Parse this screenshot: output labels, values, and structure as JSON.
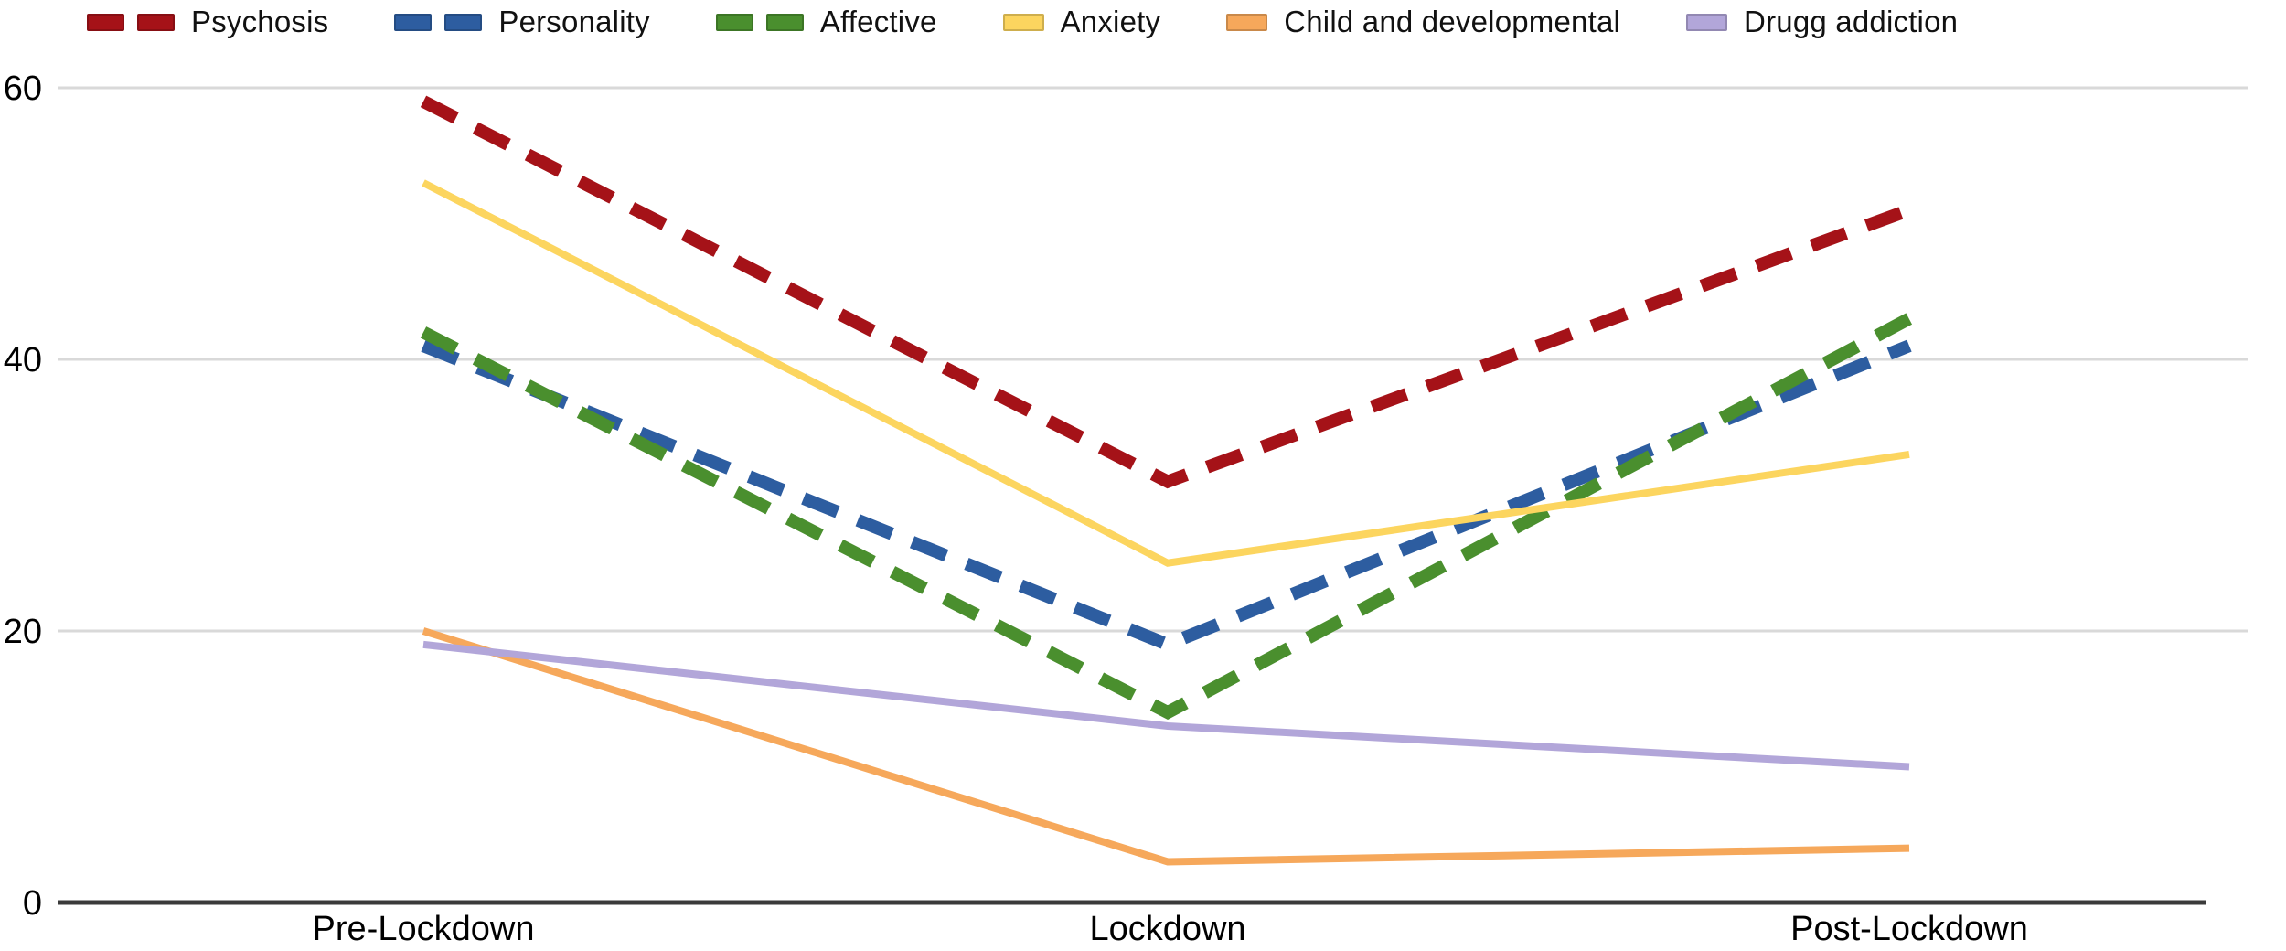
{
  "chart_data": {
    "type": "line",
    "categories": [
      "Pre-Lockdown",
      "Lockdown",
      "Post-Lockdown"
    ],
    "series": [
      {
        "name": "Psychosis",
        "values": [
          59,
          31,
          51
        ],
        "color": "#a51218",
        "style": "dashed"
      },
      {
        "name": "Personality",
        "values": [
          41,
          19,
          41
        ],
        "color": "#2d5da0",
        "style": "dashed"
      },
      {
        "name": "Affective",
        "values": [
          42,
          14,
          43
        ],
        "color": "#4a8f2e",
        "style": "dashed"
      },
      {
        "name": "Anxiety",
        "values": [
          53,
          25,
          33
        ],
        "color": "#fcd55f",
        "style": "solid"
      },
      {
        "name": "Child and developmental",
        "values": [
          20,
          3,
          4
        ],
        "color": "#f6a85b",
        "style": "solid"
      },
      {
        "name": "Drugg addiction",
        "values": [
          19,
          13,
          10
        ],
        "color": "#b2a6d9",
        "style": "solid"
      }
    ],
    "title": "",
    "xlabel": "",
    "ylabel": "",
    "ylim": [
      0,
      60
    ],
    "yticks": [
      0,
      20,
      40,
      60
    ],
    "grid": true,
    "legend_position": "top"
  },
  "colors": {
    "gridline": "#d9d9d9",
    "axis": "#3a3a3a",
    "tick_text": "#000000"
  }
}
